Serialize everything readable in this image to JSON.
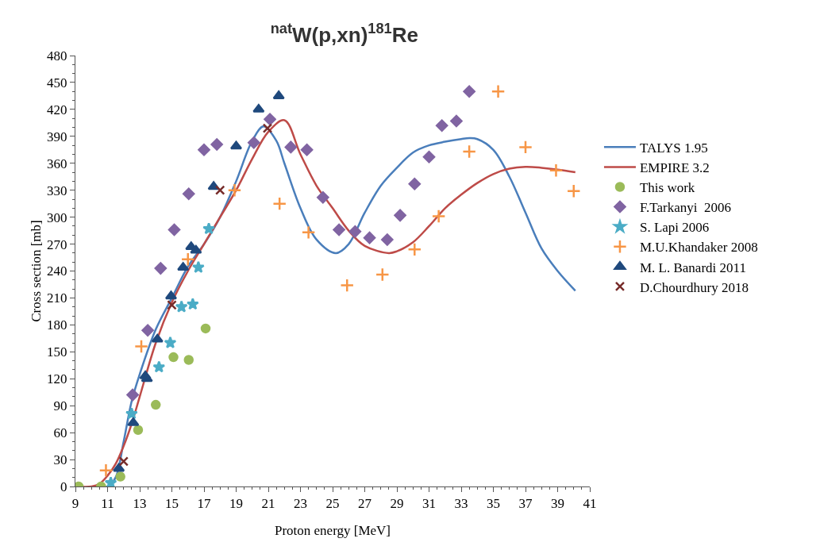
{
  "chart_data": {
    "type": "scatter",
    "title": "$^{nat}$W(p,xn)$^{181}$Re",
    "xlabel": "Proton energy [MeV]",
    "ylabel": "Cross section [mb]",
    "xlim": [
      9,
      41
    ],
    "xticks": [
      9,
      11,
      13,
      15,
      17,
      19,
      21,
      23,
      25,
      27,
      29,
      31,
      33,
      35,
      37,
      39,
      41
    ],
    "ylim": [
      0,
      480
    ],
    "yticks": [
      0,
      30,
      60,
      90,
      120,
      150,
      180,
      210,
      240,
      270,
      300,
      330,
      360,
      390,
      420,
      450,
      480
    ],
    "grid": false,
    "legend": "right",
    "series": [
      {
        "name": "TALYS 1.95",
        "type": "line",
        "marker": "none",
        "color": "#4a7ebb",
        "x": [
          9,
          11,
          11.5,
          12,
          12.5,
          13,
          14,
          15,
          16,
          17,
          18,
          19,
          20,
          20.7,
          21.5,
          22,
          23,
          24,
          25.2,
          26,
          27,
          28,
          29,
          30,
          31,
          32,
          33,
          33.5,
          34,
          35,
          36,
          37,
          38,
          39,
          40.1
        ],
        "values": [
          0,
          0,
          10,
          50,
          95,
          125,
          175,
          210,
          245,
          270,
          300,
          340,
          385,
          401,
          385,
          360,
          310,
          275,
          260,
          270,
          305,
          335,
          355,
          372,
          380,
          384,
          387,
          388,
          387,
          375,
          345,
          305,
          265,
          240,
          218
        ]
      },
      {
        "name": "EMPIRE 3.2",
        "type": "line",
        "marker": "none",
        "color": "#be4b48",
        "x": [
          9,
          10,
          10.5,
          11,
          11.5,
          12,
          12.5,
          13,
          14,
          15,
          16,
          17,
          18,
          19,
          20,
          21,
          22,
          23,
          24,
          25,
          26,
          27,
          28.5,
          29,
          30,
          31,
          32,
          33,
          34,
          35,
          36,
          37,
          38,
          39,
          40.1
        ],
        "values": [
          0,
          0,
          3,
          12,
          25,
          45,
          70,
          100,
          160,
          205,
          240,
          270,
          300,
          330,
          365,
          395,
          408,
          370,
          335,
          310,
          285,
          268,
          260,
          262,
          272,
          290,
          310,
          325,
          338,
          348,
          354,
          356,
          355,
          353,
          350
        ]
      },
      {
        "name": "This work",
        "marker": "circle",
        "color": "#9bbb59",
        "x": [
          9.2,
          10.6,
          11.8,
          12.9,
          14.0,
          15.1,
          16.05,
          17.1
        ],
        "values": [
          0,
          0,
          11,
          63,
          91,
          144,
          141,
          176
        ]
      },
      {
        "name": "F.Tarkanyi  2006",
        "marker": "diamond",
        "color": "#8064a2",
        "x": [
          12.56,
          13.5,
          14.3,
          15.15,
          16.05,
          17.0,
          17.8,
          20.1,
          21.1,
          22.4,
          23.4,
          24.4,
          25.4,
          26.4,
          27.3,
          28.4,
          29.2,
          30.1,
          31.0,
          31.8,
          32.7,
          33.5
        ],
        "values": [
          102,
          174,
          243,
          286,
          326,
          375,
          381,
          383,
          409,
          378,
          375,
          322,
          286,
          284,
          277,
          275,
          302,
          337,
          367,
          402,
          407,
          440
        ]
      },
      {
        "name": "S. Lapi 2006",
        "marker": "star",
        "color": "#4bacc6",
        "x": [
          11.2,
          12.5,
          14.2,
          14.9,
          15.6,
          16.3,
          16.65,
          17.3
        ],
        "values": [
          4,
          81,
          133,
          160,
          200,
          203,
          244,
          287
        ]
      },
      {
        "name": "M.U.Khandaker 2008",
        "marker": "cross",
        "color": "#f79646",
        "x": [
          10.9,
          13.1,
          16.0,
          18.9,
          21.7,
          23.5,
          25.9,
          28.1,
          30.1,
          31.6,
          33.5,
          35.3,
          37.0,
          38.9,
          40.0
        ],
        "values": [
          18,
          156,
          253,
          330,
          315,
          283,
          224,
          236,
          264,
          301,
          373,
          440,
          378,
          352,
          329
        ]
      },
      {
        "name": "M. L. Banardi 2011",
        "marker": "triangle",
        "color": "#1f497d",
        "x": [
          11.7,
          12.6,
          13.35,
          13.45,
          14.1,
          14.95,
          15.7,
          16.2,
          16.5,
          17.6,
          19.0,
          20.4,
          21.65
        ],
        "values": [
          20,
          71,
          123,
          120,
          164,
          212,
          244,
          267,
          263,
          334,
          379,
          420,
          435
        ]
      },
      {
        "name": "D.Chourdhury 2018",
        "marker": "x",
        "color": "#772c2a",
        "x": [
          12.0,
          15.0,
          18.0,
          20.95
        ],
        "values": [
          28,
          202,
          330,
          399
        ]
      }
    ]
  }
}
